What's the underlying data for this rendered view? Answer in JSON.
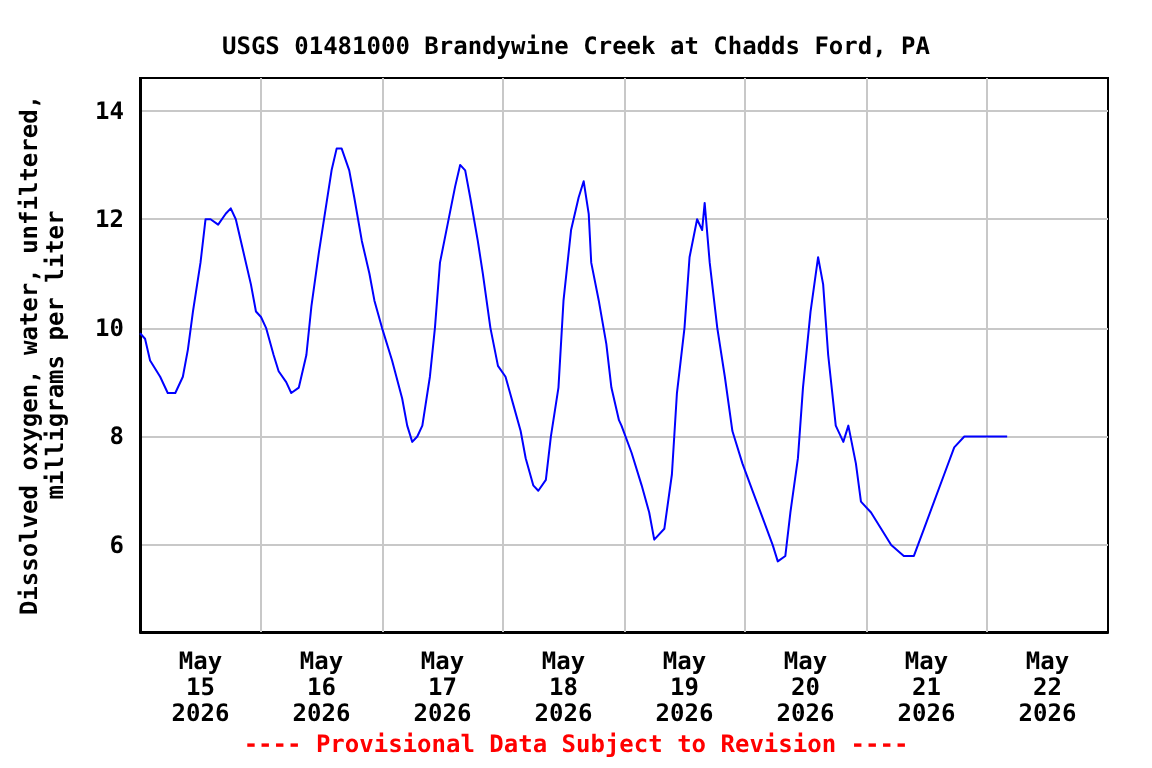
{
  "chart_data": {
    "type": "line",
    "title": "USGS 01481000 Brandywine Creek at Chadds Ford, PA",
    "ylabel": "Dissolved oxygen, water, unfiltered,\nmilligrams per liter",
    "annotations": [
      "---- Provisional Data Subject to Revision ----"
    ],
    "x": [
      "2026-05-15T00:00",
      "2026-05-15T01:00",
      "2026-05-15T02:00",
      "2026-05-15T04:00",
      "2026-05-15T05:30",
      "2026-05-15T07:00",
      "2026-05-15T08:30",
      "2026-05-15T09:30",
      "2026-05-15T10:30",
      "2026-05-15T12:00",
      "2026-05-15T13:00",
      "2026-05-15T14:00",
      "2026-05-15T15:30",
      "2026-05-15T17:00",
      "2026-05-15T18:00",
      "2026-05-15T19:00",
      "2026-05-15T20:30",
      "2026-05-15T22:00",
      "2026-05-15T23:00",
      "2026-05-16T00:00",
      "2026-05-16T01:00",
      "2026-05-16T02:30",
      "2026-05-16T03:30",
      "2026-05-16T05:00",
      "2026-05-16T06:00",
      "2026-05-16T07:30",
      "2026-05-16T09:00",
      "2026-05-16T10:00",
      "2026-05-16T11:30",
      "2026-05-16T13:00",
      "2026-05-16T14:00",
      "2026-05-16T15:00",
      "2026-05-16T16:00",
      "2026-05-16T17:30",
      "2026-05-16T18:30",
      "2026-05-16T20:00",
      "2026-05-16T21:30",
      "2026-05-16T22:30",
      "2026-05-17T00:00",
      "2026-05-17T02:00",
      "2026-05-17T04:00",
      "2026-05-17T05:00",
      "2026-05-17T06:00",
      "2026-05-17T07:00",
      "2026-05-17T08:00",
      "2026-05-17T09:30",
      "2026-05-17T10:30",
      "2026-05-17T11:30",
      "2026-05-17T13:00",
      "2026-05-17T14:30",
      "2026-05-17T15:30",
      "2026-05-17T16:30",
      "2026-05-17T17:30",
      "2026-05-17T19:00",
      "2026-05-17T20:00",
      "2026-05-17T21:30",
      "2026-05-17T23:00",
      "2026-05-18T00:30",
      "2026-05-18T02:00",
      "2026-05-18T03:30",
      "2026-05-18T04:30",
      "2026-05-18T06:00",
      "2026-05-18T07:00",
      "2026-05-18T08:30",
      "2026-05-18T09:30",
      "2026-05-18T11:00",
      "2026-05-18T12:00",
      "2026-05-18T13:30",
      "2026-05-18T15:00",
      "2026-05-18T16:00",
      "2026-05-18T17:00",
      "2026-05-18T17:30",
      "2026-05-18T19:00",
      "2026-05-18T20:30",
      "2026-05-18T21:30",
      "2026-05-18T23:00",
      "2026-05-18T23:30",
      "2026-05-19T01:30",
      "2026-05-19T03:30",
      "2026-05-19T05:00",
      "2026-05-19T06:00",
      "2026-05-19T08:00",
      "2026-05-19T09:30",
      "2026-05-19T10:30",
      "2026-05-19T12:00",
      "2026-05-19T13:00",
      "2026-05-19T14:30",
      "2026-05-19T15:30",
      "2026-05-19T16:00",
      "2026-05-19T17:00",
      "2026-05-19T18:30",
      "2026-05-19T20:00",
      "2026-05-19T21:30",
      "2026-05-19T23:30",
      "2026-05-20T01:30",
      "2026-05-20T03:30",
      "2026-05-20T05:30",
      "2026-05-20T06:30",
      "2026-05-20T08:00",
      "2026-05-20T09:00",
      "2026-05-20T10:30",
      "2026-05-20T11:30",
      "2026-05-20T13:00",
      "2026-05-20T14:30",
      "2026-05-20T15:30",
      "2026-05-20T16:30",
      "2026-05-20T18:00",
      "2026-05-20T19:30",
      "2026-05-20T20:30",
      "2026-05-20T22:00",
      "2026-05-20T23:00",
      "2026-05-21T01:00",
      "2026-05-21T03:00",
      "2026-05-21T05:00",
      "2026-05-21T07:30",
      "2026-05-21T09:30",
      "2026-05-21T11:30",
      "2026-05-21T13:30",
      "2026-05-21T15:30",
      "2026-05-21T17:30",
      "2026-05-21T19:30",
      "2026-05-21T21:30",
      "2026-05-21T23:30",
      "2026-05-22T04:00"
    ],
    "series": [
      {
        "color": "#0000ff",
        "values": [
          9.9,
          9.8,
          9.4,
          9.1,
          8.8,
          8.8,
          9.1,
          9.6,
          10.3,
          11.2,
          12.0,
          12.0,
          11.9,
          12.1,
          12.2,
          12.0,
          11.4,
          10.8,
          10.3,
          10.2,
          10.0,
          9.5,
          9.2,
          9.0,
          8.8,
          8.9,
          9.5,
          10.4,
          11.4,
          12.3,
          12.9,
          13.3,
          13.3,
          12.9,
          12.4,
          11.6,
          11.0,
          10.5,
          10.0,
          9.4,
          8.7,
          8.2,
          7.9,
          8.0,
          8.2,
          9.1,
          10.0,
          11.2,
          11.9,
          12.6,
          13.0,
          12.9,
          12.4,
          11.6,
          11.0,
          10.0,
          9.3,
          9.1,
          8.6,
          8.1,
          7.6,
          7.1,
          7.0,
          7.2,
          8.0,
          8.9,
          10.5,
          11.8,
          12.4,
          12.7,
          12.1,
          11.2,
          10.5,
          9.7,
          8.9,
          8.3,
          8.2,
          7.7,
          7.1,
          6.6,
          6.1,
          6.3,
          7.3,
          8.8,
          10.0,
          11.3,
          12.0,
          11.8,
          12.3,
          11.2,
          10.0,
          9.1,
          8.1,
          7.5,
          7.0,
          6.5,
          6.0,
          5.7,
          5.8,
          6.6,
          7.6,
          8.9,
          10.3,
          11.3,
          10.8,
          9.5,
          8.2,
          7.9,
          8.2,
          7.5,
          6.8,
          6.6,
          6.3,
          6.0,
          5.8,
          5.8,
          6.3,
          6.8,
          7.3,
          7.8,
          8.0,
          8.0,
          8.0,
          8.0
        ]
      }
    ],
    "xlim": [
      "2026-05-15T00:00",
      "2026-05-23T00:00"
    ],
    "xticks": [
      {
        "value": "2026-05-15T12:00",
        "label": "May\n15\n2026"
      },
      {
        "value": "2026-05-16T00:00",
        "label": null
      },
      {
        "value": "2026-05-16T12:00",
        "label": "May\n16\n2026"
      },
      {
        "value": "2026-05-17T00:00",
        "label": null
      },
      {
        "value": "2026-05-17T12:00",
        "label": "May\n17\n2026"
      },
      {
        "value": "2026-05-18T00:00",
        "label": null
      },
      {
        "value": "2026-05-18T12:00",
        "label": "May\n18\n2026"
      },
      {
        "value": "2026-05-19T00:00",
        "label": null
      },
      {
        "value": "2026-05-19T12:00",
        "label": "May\n19\n2026"
      },
      {
        "value": "2026-05-20T00:00",
        "label": null
      },
      {
        "value": "2026-05-20T12:00",
        "label": "May\n20\n2026"
      },
      {
        "value": "2026-05-21T00:00",
        "label": null
      },
      {
        "value": "2026-05-21T12:00",
        "label": "May\n21\n2026"
      },
      {
        "value": "2026-05-22T00:00",
        "label": null
      },
      {
        "value": "2026-05-22T12:00",
        "label": "May\n22\n2026"
      }
    ],
    "ylim": [
      4.4,
      14.6
    ],
    "yticks": [
      6,
      8,
      10,
      12,
      14
    ],
    "grid": true
  }
}
